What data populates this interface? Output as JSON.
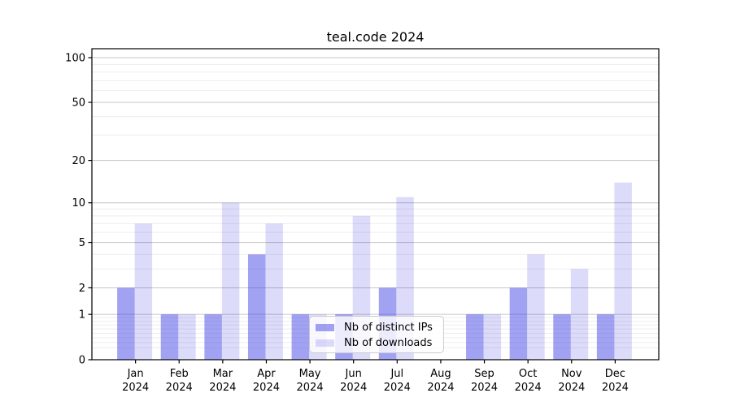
{
  "chart_data": {
    "type": "bar",
    "title": "teal.code 2024",
    "categories": [
      "Jan",
      "Feb",
      "Mar",
      "Apr",
      "May",
      "Jun",
      "Jul",
      "Aug",
      "Sep",
      "Oct",
      "Nov",
      "Dec"
    ],
    "x_sublabel": "2024",
    "series": [
      {
        "name": "Nb of distinct IPs",
        "color": "rgba(60,60,230,0.48)",
        "values": [
          2,
          1,
          1,
          4,
          1,
          1,
          2,
          0,
          1,
          2,
          1,
          1
        ]
      },
      {
        "name": "Nb of downloads",
        "color": "rgba(60,60,230,0.18)",
        "values": [
          7,
          1,
          10,
          7,
          1,
          8,
          11,
          0,
          1,
          4,
          3,
          14
        ]
      }
    ],
    "y_scale": "log1p",
    "ylim": [
      0,
      115
    ],
    "y_ticks": [
      0,
      1,
      2,
      5,
      10,
      20,
      50,
      100
    ],
    "y_minor_gridlines": [
      0.2,
      0.3,
      0.4,
      0.5,
      0.6,
      0.7,
      0.8,
      0.9,
      3,
      4,
      6,
      7,
      8,
      9,
      30,
      40,
      60,
      70,
      80,
      90
    ],
    "grid": true,
    "legend_position": "lower center"
  },
  "colors": {
    "background": "#ffffff",
    "major_grid": "#c6c6c6",
    "minor_grid": "#ededed",
    "spine": "#000000",
    "tick_text": "#000000",
    "legend_border": "#cccccc",
    "legend_background": "rgba(255,255,255,0.8)"
  }
}
